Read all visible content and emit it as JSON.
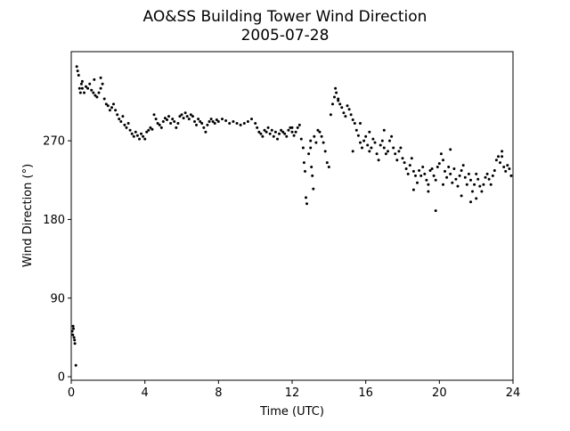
{
  "chart_data": {
    "type": "scatter",
    "title": "AO&SS Building Tower Wind Direction",
    "subtitle": "2005-07-28",
    "xlabel": "Time (UTC)",
    "ylabel": "Wind Direction (°)",
    "xlim": [
      0,
      24
    ],
    "ylim": [
      -4,
      372
    ],
    "xticks": [
      0,
      4,
      8,
      12,
      16,
      20,
      24
    ],
    "yticks": [
      0,
      90,
      180,
      270
    ],
    "grid": false,
    "marker_color": "#000000",
    "series": [
      {
        "points": [
          [
            0.05,
            52
          ],
          [
            0.08,
            48
          ],
          [
            0.1,
            58
          ],
          [
            0.12,
            55
          ],
          [
            0.15,
            45
          ],
          [
            0.18,
            42
          ],
          [
            0.2,
            38
          ],
          [
            0.25,
            13
          ],
          [
            0.3,
            355
          ],
          [
            0.35,
            350
          ],
          [
            0.4,
            345
          ],
          [
            0.45,
            330
          ],
          [
            0.5,
            325
          ],
          [
            0.55,
            335
          ],
          [
            0.6,
            330
          ],
          [
            0.7,
            325
          ],
          [
            0.8,
            332
          ],
          [
            0.9,
            330
          ],
          [
            1.0,
            335
          ],
          [
            1.1,
            328
          ],
          [
            1.2,
            325
          ],
          [
            1.3,
            322
          ],
          [
            1.4,
            320
          ],
          [
            1.5,
            325
          ],
          [
            1.6,
            330
          ],
          [
            1.7,
            335
          ],
          [
            1.8,
            318
          ],
          [
            1.9,
            312
          ],
          [
            2.0,
            310
          ],
          [
            2.1,
            305
          ],
          [
            2.2,
            308
          ],
          [
            2.3,
            312
          ],
          [
            2.4,
            305
          ],
          [
            2.5,
            300
          ],
          [
            2.6,
            295
          ],
          [
            2.7,
            292
          ],
          [
            2.8,
            298
          ],
          [
            2.9,
            288
          ],
          [
            3.0,
            285
          ],
          [
            3.1,
            290
          ],
          [
            3.2,
            282
          ],
          [
            3.3,
            278
          ],
          [
            3.4,
            275
          ],
          [
            3.5,
            280
          ],
          [
            3.6,
            276
          ],
          [
            3.7,
            272
          ],
          [
            3.8,
            278
          ],
          [
            3.9,
            275
          ],
          [
            4.0,
            272
          ],
          [
            4.1,
            280
          ],
          [
            4.2,
            282
          ],
          [
            4.3,
            285
          ],
          [
            4.4,
            283
          ],
          [
            4.5,
            300
          ],
          [
            4.6,
            295
          ],
          [
            4.7,
            290
          ],
          [
            4.8,
            288
          ],
          [
            4.9,
            285
          ],
          [
            5.0,
            292
          ],
          [
            5.1,
            296
          ],
          [
            5.2,
            294
          ],
          [
            5.3,
            298
          ],
          [
            5.4,
            290
          ],
          [
            5.5,
            295
          ],
          [
            5.6,
            292
          ],
          [
            5.7,
            285
          ],
          [
            5.8,
            290
          ],
          [
            5.9,
            298
          ],
          [
            6.0,
            300
          ],
          [
            6.1,
            296
          ],
          [
            6.2,
            302
          ],
          [
            6.3,
            298
          ],
          [
            6.4,
            295
          ],
          [
            6.5,
            300
          ],
          [
            6.6,
            298
          ],
          [
            6.7,
            292
          ],
          [
            6.8,
            288
          ],
          [
            6.9,
            295
          ],
          [
            7.0,
            292
          ],
          [
            7.1,
            290
          ],
          [
            7.2,
            285
          ],
          [
            7.3,
            280
          ],
          [
            7.4,
            288
          ],
          [
            7.5,
            292
          ],
          [
            7.6,
            295
          ],
          [
            7.7,
            292
          ],
          [
            7.8,
            290
          ],
          [
            7.9,
            294
          ],
          [
            8.0,
            292
          ],
          [
            8.2,
            295
          ],
          [
            8.4,
            293
          ],
          [
            8.6,
            290
          ],
          [
            8.8,
            292
          ],
          [
            9.0,
            290
          ],
          [
            9.2,
            288
          ],
          [
            9.4,
            290
          ],
          [
            9.6,
            292
          ],
          [
            9.8,
            295
          ],
          [
            10.0,
            290
          ],
          [
            10.1,
            285
          ],
          [
            10.2,
            280
          ],
          [
            10.3,
            278
          ],
          [
            10.4,
            275
          ],
          [
            10.5,
            282
          ],
          [
            10.6,
            280
          ],
          [
            10.7,
            285
          ],
          [
            10.8,
            278
          ],
          [
            10.9,
            282
          ],
          [
            11.0,
            275
          ],
          [
            11.1,
            280
          ],
          [
            11.2,
            272
          ],
          [
            11.3,
            278
          ],
          [
            11.4,
            282
          ],
          [
            11.5,
            280
          ],
          [
            11.6,
            278
          ],
          [
            11.7,
            275
          ],
          [
            11.8,
            282
          ],
          [
            11.9,
            285
          ],
          [
            12.0,
            280
          ],
          [
            12.1,
            276
          ],
          [
            12.2,
            280
          ],
          [
            12.3,
            285
          ],
          [
            12.4,
            288
          ],
          [
            12.5,
            272
          ],
          [
            12.6,
            262
          ],
          [
            12.65,
            245
          ],
          [
            12.7,
            235
          ],
          [
            12.75,
            205
          ],
          [
            12.8,
            198
          ],
          [
            12.9,
            255
          ],
          [
            13.0,
            262
          ],
          [
            13.05,
            240
          ],
          [
            13.1,
            230
          ],
          [
            13.15,
            215
          ],
          [
            13.2,
            275
          ],
          [
            13.3,
            268
          ],
          [
            13.4,
            282
          ],
          [
            13.5,
            280
          ],
          [
            13.6,
            275
          ],
          [
            13.7,
            268
          ],
          [
            13.8,
            258
          ],
          [
            13.9,
            245
          ],
          [
            14.0,
            240
          ],
          [
            14.1,
            300
          ],
          [
            14.2,
            312
          ],
          [
            14.3,
            320
          ],
          [
            14.35,
            330
          ],
          [
            14.4,
            325
          ],
          [
            14.5,
            318
          ],
          [
            14.6,
            312
          ],
          [
            14.7,
            308
          ],
          [
            14.8,
            302
          ],
          [
            14.9,
            298
          ],
          [
            15.0,
            310
          ],
          [
            15.1,
            306
          ],
          [
            15.2,
            300
          ],
          [
            15.3,
            294
          ],
          [
            15.4,
            290
          ],
          [
            15.5,
            282
          ],
          [
            15.6,
            276
          ],
          [
            15.7,
            268
          ],
          [
            15.8,
            262
          ],
          [
            15.9,
            270
          ],
          [
            16.0,
            275
          ],
          [
            16.1,
            265
          ],
          [
            16.2,
            258
          ],
          [
            16.3,
            262
          ],
          [
            16.4,
            272
          ],
          [
            16.5,
            268
          ],
          [
            16.6,
            255
          ],
          [
            16.7,
            248
          ],
          [
            16.8,
            265
          ],
          [
            16.9,
            270
          ],
          [
            17.0,
            262
          ],
          [
            17.1,
            255
          ],
          [
            17.2,
            258
          ],
          [
            17.3,
            270
          ],
          [
            17.4,
            275
          ],
          [
            17.5,
            262
          ],
          [
            17.6,
            255
          ],
          [
            17.7,
            248
          ],
          [
            17.8,
            258
          ],
          [
            17.9,
            262
          ],
          [
            18.0,
            250
          ],
          [
            18.1,
            245
          ],
          [
            18.2,
            238
          ],
          [
            18.3,
            232
          ],
          [
            18.4,
            242
          ],
          [
            18.5,
            250
          ],
          [
            18.6,
            235
          ],
          [
            18.7,
            230
          ],
          [
            18.8,
            222
          ],
          [
            18.9,
            236
          ],
          [
            19.0,
            230
          ],
          [
            19.1,
            240
          ],
          [
            19.2,
            232
          ],
          [
            19.3,
            225
          ],
          [
            19.4,
            220
          ],
          [
            19.5,
            236
          ],
          [
            19.6,
            238
          ],
          [
            19.7,
            230
          ],
          [
            19.8,
            225
          ],
          [
            19.9,
            240
          ],
          [
            20.0,
            244
          ],
          [
            20.1,
            255
          ],
          [
            20.2,
            248
          ],
          [
            20.3,
            235
          ],
          [
            20.4,
            228
          ],
          [
            20.5,
            240
          ],
          [
            20.6,
            232
          ],
          [
            20.7,
            222
          ],
          [
            20.8,
            238
          ],
          [
            20.9,
            226
          ],
          [
            21.0,
            218
          ],
          [
            21.1,
            230
          ],
          [
            21.2,
            236
          ],
          [
            21.3,
            242
          ],
          [
            21.4,
            228
          ],
          [
            21.5,
            220
          ],
          [
            21.6,
            232
          ],
          [
            21.7,
            225
          ],
          [
            21.8,
            212
          ],
          [
            21.9,
            220
          ],
          [
            22.0,
            232
          ],
          [
            22.1,
            226
          ],
          [
            22.2,
            218
          ],
          [
            22.3,
            212
          ],
          [
            22.4,
            220
          ],
          [
            22.5,
            228
          ],
          [
            22.6,
            232
          ],
          [
            22.7,
            226
          ],
          [
            22.8,
            220
          ],
          [
            22.9,
            230
          ],
          [
            23.0,
            236
          ],
          [
            23.1,
            248
          ],
          [
            23.2,
            252
          ],
          [
            23.3,
            245
          ],
          [
            23.4,
            252
          ],
          [
            23.5,
            240
          ],
          [
            23.6,
            235
          ],
          [
            23.7,
            242
          ],
          [
            23.8,
            238
          ],
          [
            23.9,
            230
          ],
          [
            0.6,
            338
          ],
          [
            1.25,
            340
          ],
          [
            1.6,
            342
          ],
          [
            12.0,
            285
          ],
          [
            13.0,
            270
          ],
          [
            14.5,
            316
          ],
          [
            15.3,
            258
          ],
          [
            15.7,
            290
          ],
          [
            16.2,
            280
          ],
          [
            17.0,
            282
          ],
          [
            18.6,
            214
          ],
          [
            19.4,
            212
          ],
          [
            19.8,
            190
          ],
          [
            20.2,
            220
          ],
          [
            20.6,
            260
          ],
          [
            21.2,
            207
          ],
          [
            21.7,
            200
          ],
          [
            22.0,
            204
          ],
          [
            23.4,
            258
          ]
        ]
      }
    ]
  }
}
